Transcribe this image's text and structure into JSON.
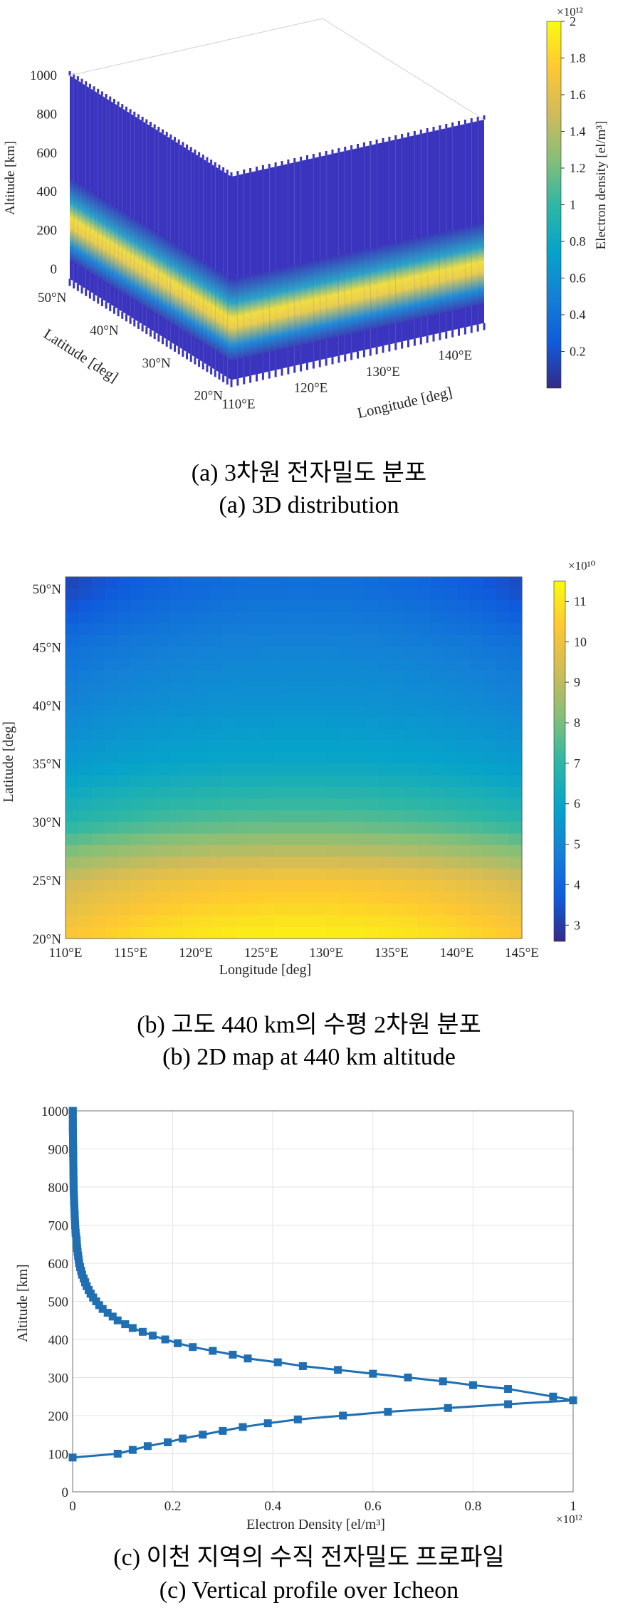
{
  "panels": {
    "a": {
      "caption_ko": "(a) 3차원 전자밀도 분포",
      "caption_en": "(a) 3D distribution"
    },
    "b": {
      "caption_ko": "(b) 고도 440 km의 수평 2차원 분포",
      "caption_en": "(b) 2D map at 440 km altitude"
    },
    "c": {
      "caption_ko": "(c) 이천 지역의 수직 전자밀도 프로파일",
      "caption_en": "(c) Vertical profile over Icheon"
    }
  },
  "chart_data": [
    {
      "id": "a",
      "type": "heatmap",
      "subtype": "3d-volume-slices",
      "xlabel": "Longitude [deg]",
      "ylabel": "Latitude [deg]",
      "zlabel": "Altitude [km]",
      "colorbar_label": "Electron density [el/m³]",
      "colorbar_exponent": "×10¹²",
      "x_ticks": [
        "110°E",
        "120°E",
        "130°E",
        "140°E"
      ],
      "y_ticks": [
        "20°N",
        "30°N",
        "40°N",
        "50°N"
      ],
      "z_ticks": [
        "0",
        "200",
        "400",
        "600",
        "800",
        "1000"
      ],
      "colorbar_ticks": [
        "0.2",
        "0.4",
        "0.6",
        "0.8",
        "1",
        "1.2",
        "1.4",
        "1.6",
        "1.8",
        "2"
      ],
      "xlim": [
        110,
        145
      ],
      "ylim": [
        20,
        51
      ],
      "zlim": [
        0,
        1000
      ],
      "clim": [
        0,
        2
      ],
      "peak_altitude_km": 240,
      "colormap": "parula"
    },
    {
      "id": "b",
      "type": "heatmap",
      "xlabel": "Longitude [deg]",
      "ylabel": "Latitude [deg]",
      "colorbar_exponent": "×10¹⁰",
      "x_ticks": [
        "110°E",
        "115°E",
        "120°E",
        "125°E",
        "130°E",
        "135°E",
        "140°E",
        "145°E"
      ],
      "y_ticks": [
        "20°N",
        "25°N",
        "30°N",
        "35°N",
        "40°N",
        "45°N",
        "50°N"
      ],
      "colorbar_ticks": [
        "3",
        "4",
        "5",
        "6",
        "7",
        "8",
        "9",
        "10",
        "11"
      ],
      "xlim": [
        110,
        145
      ],
      "ylim": [
        20,
        51
      ],
      "clim": [
        2.6,
        11.5
      ],
      "colormap": "parula",
      "value_trend": [
        {
          "lat": 20,
          "center": 11.3,
          "edge": 10.3
        },
        {
          "lat": 25,
          "center": 10.2,
          "edge": 9.2
        },
        {
          "lat": 30,
          "center": 7.6,
          "edge": 6.8
        },
        {
          "lat": 35,
          "center": 6.1,
          "edge": 5.6
        },
        {
          "lat": 40,
          "center": 5.4,
          "edge": 4.9
        },
        {
          "lat": 45,
          "center": 4.9,
          "edge": 4.3
        },
        {
          "lat": 50,
          "center": 4.3,
          "edge": 3.2
        }
      ]
    },
    {
      "id": "c",
      "type": "line",
      "xlabel": "Electron Density [el/m³]",
      "ylabel": "Altitude [km]",
      "x_exponent": "×10¹²",
      "x_ticks": [
        "0",
        "0.2",
        "0.4",
        "0.6",
        "0.8",
        "1"
      ],
      "y_ticks": [
        "0",
        "100",
        "200",
        "300",
        "400",
        "500",
        "600",
        "700",
        "800",
        "900",
        "1000"
      ],
      "xlim": [
        0,
        1
      ],
      "ylim": [
        0,
        1000
      ],
      "grid": true,
      "color": "#1f6fb2",
      "marker": "square",
      "series": [
        {
          "points": [
            [
              0.0,
              90
            ],
            [
              0.09,
              100
            ],
            [
              0.12,
              110
            ],
            [
              0.15,
              120
            ],
            [
              0.19,
              130
            ],
            [
              0.22,
              140
            ],
            [
              0.26,
              150
            ],
            [
              0.3,
              160
            ],
            [
              0.34,
              170
            ],
            [
              0.39,
              180
            ],
            [
              0.45,
              190
            ],
            [
              0.54,
              200
            ],
            [
              0.63,
              210
            ],
            [
              0.75,
              220
            ],
            [
              0.87,
              230
            ],
            [
              1.0,
              240
            ],
            [
              0.96,
              250
            ],
            [
              0.87,
              270
            ],
            [
              0.8,
              280
            ],
            [
              0.74,
              290
            ],
            [
              0.67,
              300
            ],
            [
              0.6,
              310
            ],
            [
              0.53,
              320
            ],
            [
              0.46,
              330
            ],
            [
              0.41,
              340
            ],
            [
              0.35,
              350
            ],
            [
              0.32,
              360
            ],
            [
              0.28,
              370
            ],
            [
              0.24,
              380
            ],
            [
              0.21,
              390
            ],
            [
              0.185,
              400
            ],
            [
              0.16,
              410
            ],
            [
              0.14,
              420
            ],
            [
              0.12,
              430
            ],
            [
              0.105,
              440
            ],
            [
              0.09,
              450
            ],
            [
              0.08,
              460
            ],
            [
              0.07,
              470
            ],
            [
              0.06,
              480
            ],
            [
              0.053,
              490
            ],
            [
              0.047,
              500
            ],
            [
              0.041,
              510
            ],
            [
              0.036,
              520
            ],
            [
              0.032,
              530
            ],
            [
              0.028,
              540
            ],
            [
              0.025,
              550
            ],
            [
              0.022,
              560
            ],
            [
              0.019,
              570
            ],
            [
              0.017,
              580
            ],
            [
              0.015,
              590
            ],
            [
              0.013,
              600
            ],
            [
              0.011,
              620
            ],
            [
              0.009,
              640
            ],
            [
              0.008,
              660
            ],
            [
              0.006,
              680
            ],
            [
              0.005,
              700
            ],
            [
              0.004,
              730
            ],
            [
              0.003,
              760
            ],
            [
              0.002,
              800
            ],
            [
              0.0015,
              850
            ],
            [
              0.001,
              900
            ],
            [
              0.0005,
              950
            ],
            [
              0.0003,
              1000
            ]
          ]
        }
      ]
    }
  ]
}
